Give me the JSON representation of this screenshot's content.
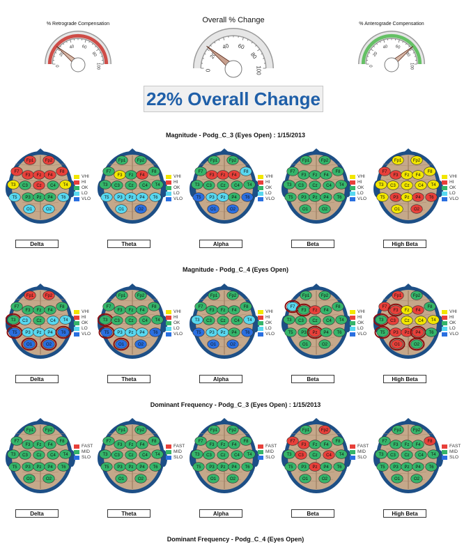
{
  "gauges": {
    "retrograde": {
      "title": "% Retrograde Compensation",
      "ticks": [
        "0",
        "20",
        "40",
        "60",
        "80",
        "100"
      ],
      "value": 22,
      "colors": {
        "fill": "#c9312c",
        "track": "#e6e6e6"
      }
    },
    "overall": {
      "title": "Overall % Change",
      "ticks": [
        "0",
        "20",
        "40",
        "60",
        "80",
        "100"
      ],
      "value": 22,
      "colors": {
        "fill": "#dcdcdc",
        "track": "#e6e6e6"
      }
    },
    "anterograde": {
      "title": "% Anterograde Compensation",
      "ticks": [
        "0",
        "20",
        "40",
        "60",
        "80",
        "100"
      ],
      "value": 78,
      "colors": {
        "fill": "#4db84d",
        "track": "#e6e6e6"
      }
    }
  },
  "banner": "22% Overall Change",
  "electrodes": [
    "Fp1",
    "Fp2",
    "F7",
    "F3",
    "Fz",
    "F4",
    "F8",
    "T3",
    "C3",
    "Cz",
    "C4",
    "T4",
    "T5",
    "P3",
    "Pz",
    "P4",
    "T6",
    "O1",
    "O2"
  ],
  "colors": {
    "VHI": "#f2e600",
    "HI": "#e8403a",
    "OK": "#35b56a",
    "LO": "#58d8f0",
    "VLO": "#2a6fe0",
    "FAST": "#e8403a",
    "MID": "#35b56a",
    "SLO": "#2a6fe0",
    "head": "#1d4f86",
    "brain": "#c5a88a",
    "ring": "#8b0f0f"
  },
  "legends": {
    "magnitude": [
      "VHI",
      "HI",
      "OK",
      "LO",
      "VLO"
    ],
    "frequency": [
      "FAST",
      "MID",
      "SLO"
    ]
  },
  "sections": [
    {
      "title": "Magnitude - Podg_C_3 (Eyes Open) : 1/15/2013",
      "legend": "magnitude",
      "maps": [
        {
          "band": "Delta",
          "values": [
            "HI",
            "HI",
            "HI",
            "HI",
            "HI",
            "HI",
            "HI",
            "VHI",
            "OK",
            "HI",
            "OK",
            "VHI",
            "LO",
            "OK",
            "OK",
            "OK",
            "LO",
            "LO",
            "LO"
          ]
        },
        {
          "band": "Theta",
          "values": [
            "OK",
            "OK",
            "OK",
            "VHI",
            "OK",
            "HI",
            "OK",
            "OK",
            "OK",
            "OK",
            "OK",
            "OK",
            "LO",
            "LO",
            "LO",
            "LO",
            "LO",
            "LO",
            "VLO"
          ]
        },
        {
          "band": "Alpha",
          "values": [
            "OK",
            "OK",
            "OK",
            "HI",
            "HI",
            "HI",
            "LO",
            "OK",
            "OK",
            "OK",
            "OK",
            "OK",
            "VLO",
            "LO",
            "LO",
            "OK",
            "VLO",
            "VLO",
            "VLO"
          ]
        },
        {
          "band": "Beta",
          "values": [
            "OK",
            "OK",
            "OK",
            "OK",
            "OK",
            "OK",
            "OK",
            "OK",
            "OK",
            "OK",
            "OK",
            "OK",
            "OK",
            "OK",
            "OK",
            "OK",
            "OK",
            "OK",
            "OK"
          ]
        },
        {
          "band": "High Beta",
          "values": [
            "VHI",
            "VHI",
            "HI",
            "HI",
            "VHI",
            "VHI",
            "VHI",
            "VHI",
            "VHI",
            "VHI",
            "VHI",
            "VHI",
            "VHI",
            "HI",
            "VHI",
            "HI",
            "HI",
            "VHI",
            "HI"
          ]
        }
      ]
    },
    {
      "title": "Magnitude - Podg_C_4 (Eyes Open)",
      "legend": "magnitude",
      "maps": [
        {
          "band": "Delta",
          "values": [
            "HI",
            "HI",
            "OK",
            "OK",
            "OK",
            "OK",
            "OK",
            "OK",
            "LO",
            "OK",
            "LO",
            "LO",
            "VLO",
            "LO",
            "LO",
            "LO",
            "VLO",
            "VLO",
            "VLO"
          ],
          "ringed": [
            "T3",
            "T5",
            "O1",
            "O2",
            "T6"
          ]
        },
        {
          "band": "Theta",
          "values": [
            "OK",
            "OK",
            "OK",
            "OK",
            "OK",
            "OK",
            "OK",
            "OK",
            "OK",
            "OK",
            "OK",
            "OK",
            "VLO",
            "LO",
            "LO",
            "LO",
            "VLO",
            "VLO",
            "VLO"
          ],
          "ringed": [
            "T3",
            "T5",
            "O1"
          ]
        },
        {
          "band": "Alpha",
          "values": [
            "OK",
            "OK",
            "OK",
            "OK",
            "OK",
            "OK",
            "OK",
            "LO",
            "OK",
            "OK",
            "OK",
            "LO",
            "VLO",
            "LO",
            "LO",
            "OK",
            "VLO",
            "VLO",
            "VLO"
          ],
          "ringed": []
        },
        {
          "band": "Beta",
          "values": [
            "OK",
            "OK",
            "LO",
            "OK",
            "HI",
            "OK",
            "OK",
            "OK",
            "OK",
            "OK",
            "OK",
            "OK",
            "OK",
            "OK",
            "HI",
            "OK",
            "OK",
            "OK",
            "OK"
          ],
          "ringed": [
            "F7",
            "F3",
            "Pz"
          ]
        },
        {
          "band": "High Beta",
          "values": [
            "HI",
            "OK",
            "HI",
            "HI",
            "VHI",
            "HI",
            "OK",
            "OK",
            "HI",
            "VHI",
            "VHI",
            "VHI",
            "OK",
            "HI",
            "HI",
            "HI",
            "OK",
            "HI",
            "OK"
          ],
          "ringed": [
            "F3",
            "T3",
            "T5",
            "O1",
            "O2",
            "P4"
          ]
        }
      ]
    },
    {
      "title": "Dominant Frequency - Podg_C_3 (Eyes Open) : 1/15/2013",
      "legend": "frequency",
      "maps": [
        {
          "band": "Delta",
          "values": [
            "MID",
            "MID",
            "MID",
            "MID",
            "MID",
            "MID",
            "MID",
            "MID",
            "MID",
            "MID",
            "MID",
            "MID",
            "MID",
            "MID",
            "MID",
            "MID",
            "MID",
            "MID",
            "MID"
          ]
        },
        {
          "band": "Theta",
          "values": [
            "MID",
            "MID",
            "MID",
            "MID",
            "MID",
            "MID",
            "MID",
            "MID",
            "MID",
            "MID",
            "MID",
            "MID",
            "MID",
            "MID",
            "MID",
            "MID",
            "MID",
            "MID",
            "MID"
          ]
        },
        {
          "band": "Alpha",
          "values": [
            "MID",
            "MID",
            "MID",
            "MID",
            "MID",
            "MID",
            "MID",
            "MID",
            "MID",
            "MID",
            "MID",
            "MID",
            "MID",
            "MID",
            "MID",
            "MID",
            "MID",
            "MID",
            "MID"
          ]
        },
        {
          "band": "Beta",
          "values": [
            "MID",
            "FAST",
            "FAST",
            "FAST",
            "MID",
            "MID",
            "MID",
            "MID",
            "FAST",
            "MID",
            "FAST",
            "MID",
            "MID",
            "MID",
            "FAST",
            "MID",
            "MID",
            "MID",
            "MID"
          ]
        },
        {
          "band": "High Beta",
          "values": [
            "MID",
            "MID",
            "MID",
            "MID",
            "MID",
            "MID",
            "FAST",
            "MID",
            "MID",
            "MID",
            "MID",
            "MID",
            "MID",
            "MID",
            "MID",
            "MID",
            "MID",
            "MID",
            "MID"
          ]
        }
      ]
    },
    {
      "title": "Dominant Frequency - Podg_C_4 (Eyes Open)",
      "legend": "frequency",
      "maps": []
    }
  ]
}
